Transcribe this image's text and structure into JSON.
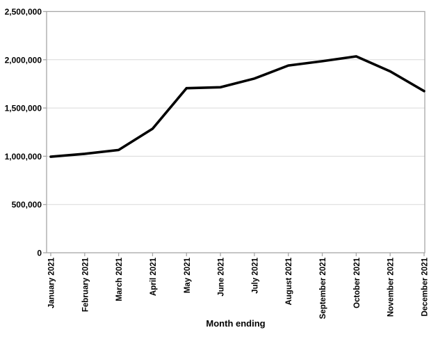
{
  "page": {
    "background": "#ffffff"
  },
  "chart_data": {
    "type": "line",
    "title": "",
    "xlabel": "Month ending",
    "ylabel": "",
    "categories": [
      "January 2021",
      "February 2021",
      "March 2021",
      "April 2021",
      "May 2021",
      "June 2021",
      "July 2021",
      "August 2021",
      "September 2021",
      "October 2021",
      "November 2021",
      "December 2021"
    ],
    "values": [
      995000,
      1025000,
      1065000,
      1285000,
      1705000,
      1715000,
      1805000,
      1940000,
      1985000,
      2035000,
      1880000,
      1675000
    ],
    "ylim": [
      0,
      2500000
    ],
    "yticks": [
      {
        "value": 0,
        "label": "0"
      },
      {
        "value": 500000,
        "label": "500,000"
      },
      {
        "value": 1000000,
        "label": "1,000,000"
      },
      {
        "value": 1500000,
        "label": "1,500,000"
      },
      {
        "value": 2000000,
        "label": "2,000,000"
      },
      {
        "value": 2500000,
        "label": "2,500,000"
      }
    ],
    "grid": "horizontal",
    "legend": "none",
    "colors": {
      "line": "#000000",
      "grid": "#d9d9d9",
      "axis": "#a6a6a6",
      "text": "#000000"
    }
  }
}
